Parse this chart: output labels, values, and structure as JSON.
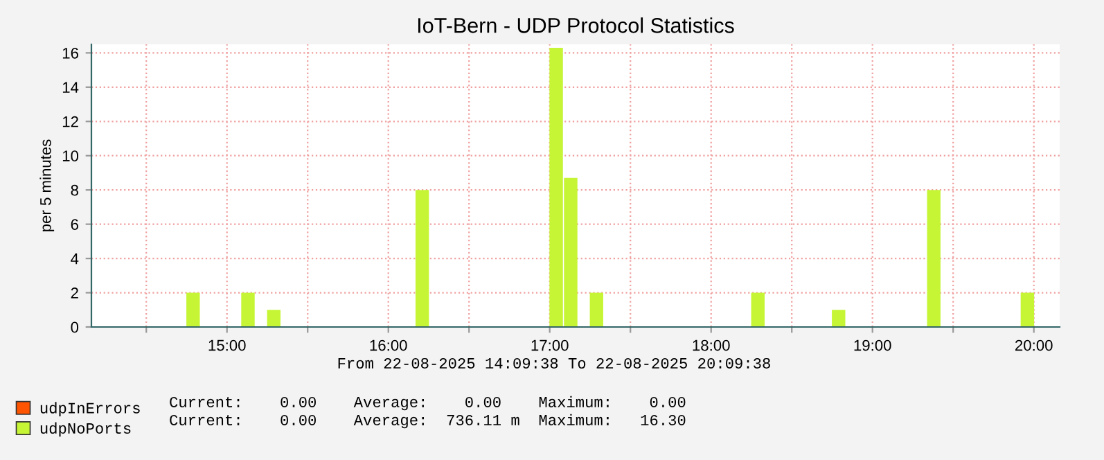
{
  "chart_data": {
    "type": "bar",
    "title": "IoT-Bern - UDP Protocol Statistics",
    "ylabel": "per 5 minutes",
    "x": [
      14.79,
      15.13,
      15.29,
      16.21,
      17.04,
      17.13,
      17.29,
      18.29,
      18.79,
      19.38,
      19.96
    ],
    "series": [
      {
        "name": "udpInErrors",
        "color": "#ff5500",
        "values": [
          0,
          0,
          0,
          0,
          0,
          0,
          0,
          0,
          0,
          0,
          0
        ]
      },
      {
        "name": "udpNoPorts",
        "color": "#c6f536",
        "values": [
          2,
          2,
          1,
          8,
          16.3,
          8.7,
          2,
          2,
          1,
          8,
          2
        ]
      }
    ],
    "xlim": [
      14.16,
      20.16
    ],
    "xticks": [
      {
        "value": 14.5,
        "label": null
      },
      {
        "value": 15,
        "label": "15:00"
      },
      {
        "value": 15.5,
        "label": null
      },
      {
        "value": 16,
        "label": "16:00"
      },
      {
        "value": 16.5,
        "label": null
      },
      {
        "value": 17,
        "label": "17:00"
      },
      {
        "value": 17.5,
        "label": null
      },
      {
        "value": 18,
        "label": "18:00"
      },
      {
        "value": 18.5,
        "label": null
      },
      {
        "value": 19,
        "label": "19:00"
      },
      {
        "value": 19.5,
        "label": null
      },
      {
        "value": 20,
        "label": "20:00"
      }
    ],
    "ylim": [
      0,
      16.5
    ],
    "yticks": [
      0,
      2,
      4,
      6,
      8,
      10,
      12,
      14,
      16
    ],
    "grid": true,
    "legend": "bottom",
    "annotations": [
      "From 22-08-2025 14:09:38 To 22-08-2025 20:09:38",
      "Current:    0.00    Average:    0.00    Maximum:    0.00",
      "Current:    0.00    Average:  736.11 m  Maximum:   16.30"
    ]
  }
}
